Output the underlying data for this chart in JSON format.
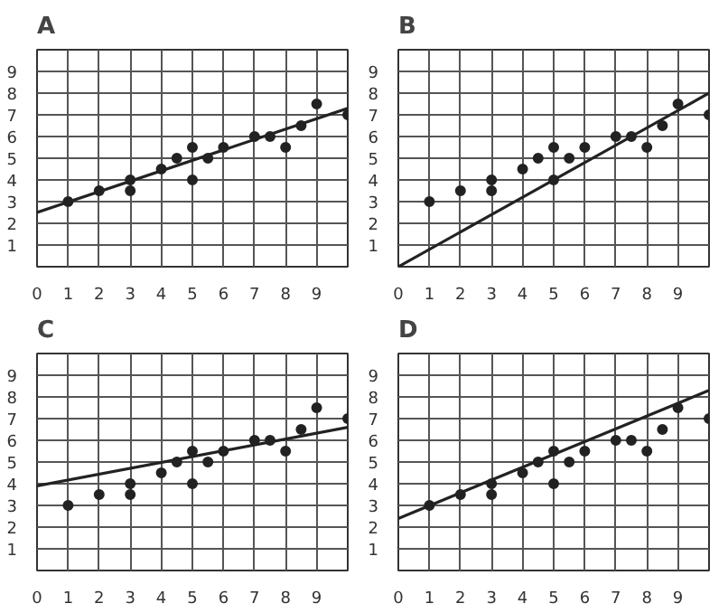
{
  "chart_data": [
    {
      "type": "scatter",
      "title": "A",
      "xlim": [
        0,
        10
      ],
      "ylim": [
        0,
        10
      ],
      "xticks": [
        0,
        1,
        2,
        3,
        4,
        5,
        6,
        7,
        8,
        9
      ],
      "yticks": [
        1,
        2,
        3,
        4,
        5,
        6,
        7,
        8,
        9
      ],
      "grid": true,
      "series": [
        {
          "color": "#222222",
          "marker": "circle",
          "x": [
            1,
            2,
            3,
            3,
            4,
            4.5,
            5,
            5,
            5.5,
            6,
            7,
            7.5,
            8,
            8.5,
            9,
            10
          ],
          "values": [
            3,
            3.5,
            4,
            3.5,
            4.5,
            5,
            5.5,
            4,
            5,
            5.5,
            6,
            6,
            5.5,
            6.5,
            7.5,
            7
          ]
        },
        {
          "type": "line",
          "color": "#222222",
          "marker": "none",
          "x": [
            0,
            10
          ],
          "values": [
            2.5,
            7.3
          ]
        }
      ]
    },
    {
      "type": "scatter",
      "title": "B",
      "xlim": [
        0,
        10
      ],
      "ylim": [
        0,
        10
      ],
      "xticks": [
        0,
        1,
        2,
        3,
        4,
        5,
        6,
        7,
        8,
        9
      ],
      "yticks": [
        1,
        2,
        3,
        4,
        5,
        6,
        7,
        8,
        9
      ],
      "grid": true,
      "series": [
        {
          "color": "#222222",
          "marker": "circle",
          "x": [
            1,
            2,
            3,
            3,
            4,
            4.5,
            5,
            5,
            5.5,
            6,
            7,
            7.5,
            8,
            8.5,
            9,
            10
          ],
          "values": [
            3,
            3.5,
            4,
            3.5,
            4.5,
            5,
            5.5,
            4,
            5,
            5.5,
            6,
            6,
            5.5,
            6.5,
            7.5,
            7
          ]
        },
        {
          "type": "line",
          "color": "#222222",
          "marker": "none",
          "x": [
            0,
            10
          ],
          "values": [
            0,
            8
          ]
        }
      ]
    },
    {
      "type": "scatter",
      "title": "C",
      "xlim": [
        0,
        10
      ],
      "ylim": [
        0,
        10
      ],
      "xticks": [
        0,
        1,
        2,
        3,
        4,
        5,
        6,
        7,
        8,
        9
      ],
      "yticks": [
        1,
        2,
        3,
        4,
        5,
        6,
        7,
        8,
        9
      ],
      "grid": true,
      "series": [
        {
          "color": "#222222",
          "marker": "circle",
          "x": [
            1,
            2,
            3,
            3,
            4,
            4.5,
            5,
            5,
            5.5,
            6,
            7,
            7.5,
            8,
            8.5,
            9,
            10
          ],
          "values": [
            3,
            3.5,
            4,
            3.5,
            4.5,
            5,
            5.5,
            4,
            5,
            5.5,
            6,
            6,
            5.5,
            6.5,
            7.5,
            7
          ]
        },
        {
          "type": "line",
          "color": "#222222",
          "marker": "none",
          "x": [
            0,
            10
          ],
          "values": [
            3.9,
            6.6
          ]
        }
      ]
    },
    {
      "type": "scatter",
      "title": "D",
      "xlim": [
        0,
        10
      ],
      "ylim": [
        0,
        10
      ],
      "xticks": [
        0,
        1,
        2,
        3,
        4,
        5,
        6,
        7,
        8,
        9
      ],
      "yticks": [
        1,
        2,
        3,
        4,
        5,
        6,
        7,
        8,
        9
      ],
      "grid": true,
      "series": [
        {
          "color": "#222222",
          "marker": "circle",
          "x": [
            1,
            2,
            3,
            3,
            4,
            4.5,
            5,
            5,
            5.5,
            6,
            7,
            7.5,
            8,
            8.5,
            9,
            10
          ],
          "values": [
            3,
            3.5,
            4,
            3.5,
            4.5,
            5,
            5.5,
            4,
            5,
            5.5,
            6,
            6,
            5.5,
            6.5,
            7.5,
            7
          ]
        },
        {
          "type": "line",
          "color": "#222222",
          "marker": "none",
          "x": [
            0,
            10
          ],
          "values": [
            2.4,
            8.3
          ]
        }
      ]
    }
  ]
}
